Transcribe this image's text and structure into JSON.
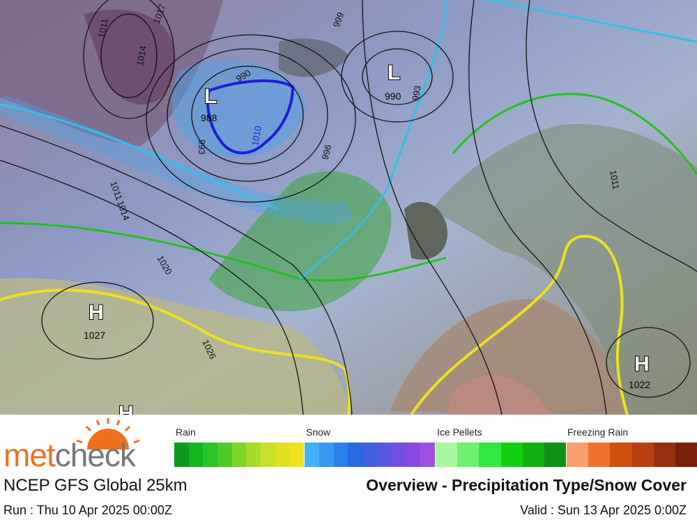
{
  "map": {
    "centers": [
      {
        "symbol": "L",
        "value": 988
      },
      {
        "symbol": "L",
        "value": 990
      },
      {
        "symbol": "H",
        "value": 1027
      },
      {
        "symbol": "H",
        "value": 1022
      },
      {
        "symbol": "H"
      }
    ],
    "isobar_labels": [
      1011,
      1014,
      1017,
      990,
      999,
      993,
      993,
      996,
      1010,
      1011,
      1014,
      1020,
      1026,
      1011
    ]
  },
  "legend": {
    "groups": [
      {
        "label": "Rain"
      },
      {
        "label": "Snow"
      },
      {
        "label": "Ice Pellets"
      },
      {
        "label": "Freezing Rain"
      }
    ]
  },
  "footer": {
    "logo_parts": [
      "met",
      "check"
    ],
    "model": "NCEP GFS Global 25km",
    "title": "Overview - Precipitation Type/Snow Cover",
    "run": "Run : Thu 10 Apr 2025 00:00Z",
    "valid": "Valid : Sun 13 Apr 2025 0:00Z"
  }
}
